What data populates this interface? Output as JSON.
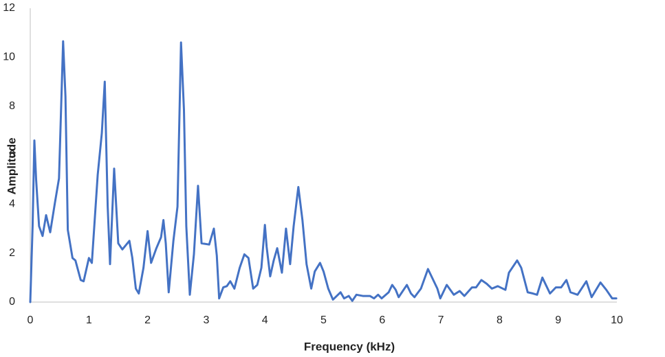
{
  "chart_data": {
    "type": "line",
    "x_label": "Frequency (kHz)",
    "y_label": "Amplitude",
    "xlim": [
      0,
      10
    ],
    "xticks": [
      0,
      1,
      2,
      3,
      4,
      5,
      6,
      7,
      8,
      9,
      10
    ],
    "ylim": [
      0,
      12
    ],
    "yticks": [
      0,
      2,
      4,
      6,
      8,
      10,
      12
    ],
    "grid": false,
    "series": [
      {
        "name": "Amplitude",
        "color": "#4472c4",
        "x": [
          0,
          0.04,
          0.07,
          0.1,
          0.15,
          0.21,
          0.27,
          0.34,
          0.42,
          0.49,
          0.56,
          0.6,
          0.64,
          0.72,
          0.77,
          0.86,
          0.91,
          1.0,
          1.05,
          1.15,
          1.22,
          1.27,
          1.32,
          1.36,
          1.43,
          1.5,
          1.57,
          1.69,
          1.74,
          1.8,
          1.85,
          1.93,
          2.0,
          2.06,
          2.15,
          2.23,
          2.27,
          2.31,
          2.36,
          2.44,
          2.51,
          2.57,
          2.62,
          2.66,
          2.72,
          2.79,
          2.86,
          2.92,
          3.05,
          3.13,
          3.18,
          3.22,
          3.29,
          3.35,
          3.41,
          3.48,
          3.57,
          3.65,
          3.72,
          3.8,
          3.87,
          3.94,
          4.0,
          4.03,
          4.09,
          4.15,
          4.21,
          4.29,
          4.36,
          4.43,
          4.49,
          4.57,
          4.64,
          4.71,
          4.79,
          4.85,
          4.94,
          5.0,
          5.08,
          5.16,
          5.29,
          5.35,
          5.43,
          5.49,
          5.56,
          5.67,
          5.79,
          5.86,
          5.93,
          5.99,
          6.11,
          6.17,
          6.23,
          6.28,
          6.42,
          6.49,
          6.55,
          6.66,
          6.78,
          6.87,
          6.94,
          6.99,
          7.1,
          7.22,
          7.32,
          7.4,
          7.53,
          7.6,
          7.69,
          7.78,
          7.87,
          7.97,
          8.1,
          8.16,
          8.3,
          8.37,
          8.48,
          8.57,
          8.64,
          8.73,
          8.86,
          8.96,
          9.05,
          9.14,
          9.21,
          9.33,
          9.48,
          9.57,
          9.72,
          9.82,
          9.92,
          9.99
        ],
        "values": [
          0,
          3.1,
          6.6,
          5.0,
          3.1,
          2.7,
          3.55,
          2.85,
          4.05,
          5.05,
          10.65,
          8.4,
          2.95,
          1.8,
          1.7,
          0.9,
          0.85,
          1.8,
          1.6,
          5.2,
          6.9,
          9.0,
          3.9,
          1.55,
          5.45,
          2.4,
          2.15,
          2.5,
          1.8,
          0.55,
          0.35,
          1.4,
          2.9,
          1.6,
          2.2,
          2.65,
          3.35,
          2.4,
          0.4,
          2.5,
          3.9,
          10.6,
          7.85,
          3.1,
          0.3,
          1.95,
          4.75,
          2.4,
          2.35,
          3.0,
          1.9,
          0.15,
          0.6,
          0.65,
          0.85,
          0.55,
          1.4,
          1.95,
          1.8,
          0.55,
          0.7,
          1.4,
          3.15,
          2.25,
          1.05,
          1.7,
          2.2,
          1.2,
          3.0,
          1.55,
          3.1,
          4.7,
          3.35,
          1.55,
          0.55,
          1.25,
          1.6,
          1.25,
          0.55,
          0.1,
          0.4,
          0.15,
          0.25,
          0.05,
          0.3,
          0.25,
          0.25,
          0.15,
          0.3,
          0.15,
          0.4,
          0.7,
          0.5,
          0.2,
          0.7,
          0.35,
          0.2,
          0.55,
          1.35,
          0.9,
          0.55,
          0.15,
          0.7,
          0.3,
          0.45,
          0.25,
          0.6,
          0.6,
          0.9,
          0.75,
          0.55,
          0.65,
          0.5,
          1.2,
          1.7,
          1.4,
          0.4,
          0.35,
          0.3,
          1.0,
          0.35,
          0.6,
          0.6,
          0.9,
          0.4,
          0.3,
          0.85,
          0.2,
          0.8,
          0.5,
          0.15,
          0.15
        ]
      }
    ]
  }
}
